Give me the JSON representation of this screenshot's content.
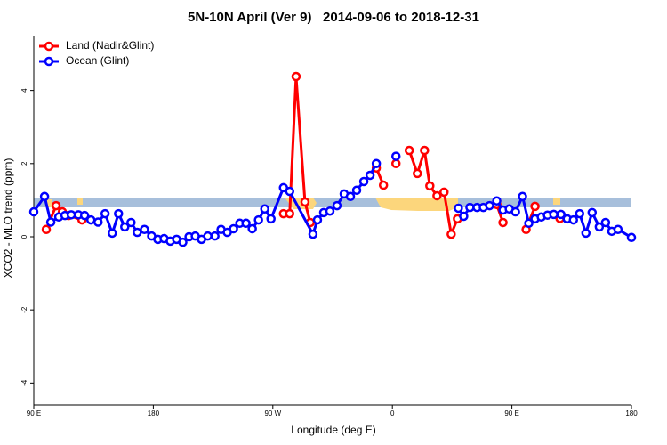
{
  "chart_data": {
    "type": "line",
    "title": "5N-10N April (Ver 9)   2014-09-06 to 2018-12-31",
    "xlabel": "Longitude (deg E)",
    "ylabel": "XCO2 - MLO trend (ppm)",
    "xlim": [
      90,
      540
    ],
    "xticks": [
      {
        "value": 90,
        "label": "90 E"
      },
      180,
      {
        "value": 270,
        "label": "90 W"
      },
      {
        "value": 360,
        "label": "0"
      },
      {
        "value": 450,
        "label": "90 E"
      },
      {
        "value": 540,
        "label": "180"
      }
    ],
    "ylim": [
      -4.6,
      5.5
    ],
    "yticks": [
      -4,
      -2,
      0,
      2,
      4
    ],
    "legend": "top-left",
    "series": [
      {
        "name": "Land (Nadir&Glint)",
        "color": "#ff0000",
        "x": [
          99.4,
          106.8,
          111.5,
          116.2,
          126.3,
          200,
          278.0,
          282.7,
          287.5,
          294.2,
          298.2,
          320,
          347.9,
          353.3,
          358,
          362.7,
          368,
          372.7,
          378.8,
          384.2,
          388.2,
          393.6,
          398.9,
          404.3,
          409.0,
          420,
          438.6,
          443.3,
          450,
          460.7,
          467.4,
          475,
          486.2
        ],
        "values": [
          0.2,
          0.85,
          0.68,
          0.58,
          0.46,
          null,
          0.63,
          0.63,
          4.38,
          0.95,
          0.39,
          null,
          1.88,
          1.41,
          null,
          2.0,
          null,
          2.36,
          1.73,
          2.36,
          1.39,
          1.12,
          1.22,
          0.07,
          0.49,
          null,
          0.88,
          0.39,
          null,
          0.2,
          0.83,
          null,
          0.5
        ]
      },
      {
        "name": "Ocean (Glint)",
        "color": "#0000ff",
        "x": [
          90.0,
          98.1,
          102.8,
          108.8,
          113.5,
          118.2,
          123.6,
          128.3,
          133.0,
          138.4,
          143.7,
          149.1,
          153.8,
          158.5,
          163.2,
          167.9,
          173.3,
          178.7,
          183.4,
          188.1,
          192.8,
          197.5,
          202.2,
          206.9,
          211.6,
          216.3,
          221.0,
          226.4,
          231.0,
          235.7,
          240.4,
          245.1,
          249.8,
          254.5,
          259.2,
          263.9,
          268.6,
          278.0,
          282.7,
          300.2,
          303.6,
          308.3,
          313.0,
          318.3,
          323.7,
          328.4,
          333.1,
          338.5,
          343.2,
          347.9,
          355,
          362.7,
          385,
          409.7,
          413.7,
          418.4,
          423.8,
          428.5,
          433.2,
          438.6,
          443.3,
          448.0,
          452.7,
          458.0,
          462.7,
          467.4,
          472.1,
          476.8,
          481.5,
          486.9,
          491.6,
          496.3,
          501.0,
          505.7,
          510.4,
          515.8,
          520.5,
          525.2,
          529.9,
          540.0
        ],
        "values": [
          0.68,
          1.1,
          0.4,
          0.54,
          0.58,
          0.6,
          0.6,
          0.58,
          0.46,
          0.4,
          0.63,
          0.1,
          0.63,
          0.27,
          0.39,
          0.12,
          0.2,
          0.02,
          -0.07,
          -0.05,
          -0.12,
          -0.07,
          -0.15,
          0,
          0.02,
          -0.07,
          0.02,
          0.02,
          0.2,
          0.12,
          0.22,
          0.37,
          0.37,
          0.22,
          0.46,
          0.76,
          0.49,
          1.34,
          1.24,
          0.07,
          0.46,
          0.66,
          0.7,
          0.85,
          1.17,
          1.1,
          1.27,
          1.51,
          1.68,
          2.0,
          null,
          2.2,
          null,
          0.78,
          0.56,
          0.8,
          0.8,
          0.8,
          0.85,
          0.98,
          0.73,
          0.76,
          0.68,
          1.1,
          0.37,
          0.49,
          0.54,
          0.59,
          0.61,
          0.61,
          0.49,
          0.46,
          0.63,
          0.1,
          0.66,
          0.27,
          0.39,
          0.15,
          0.2,
          -0.02
        ]
      }
    ]
  }
}
